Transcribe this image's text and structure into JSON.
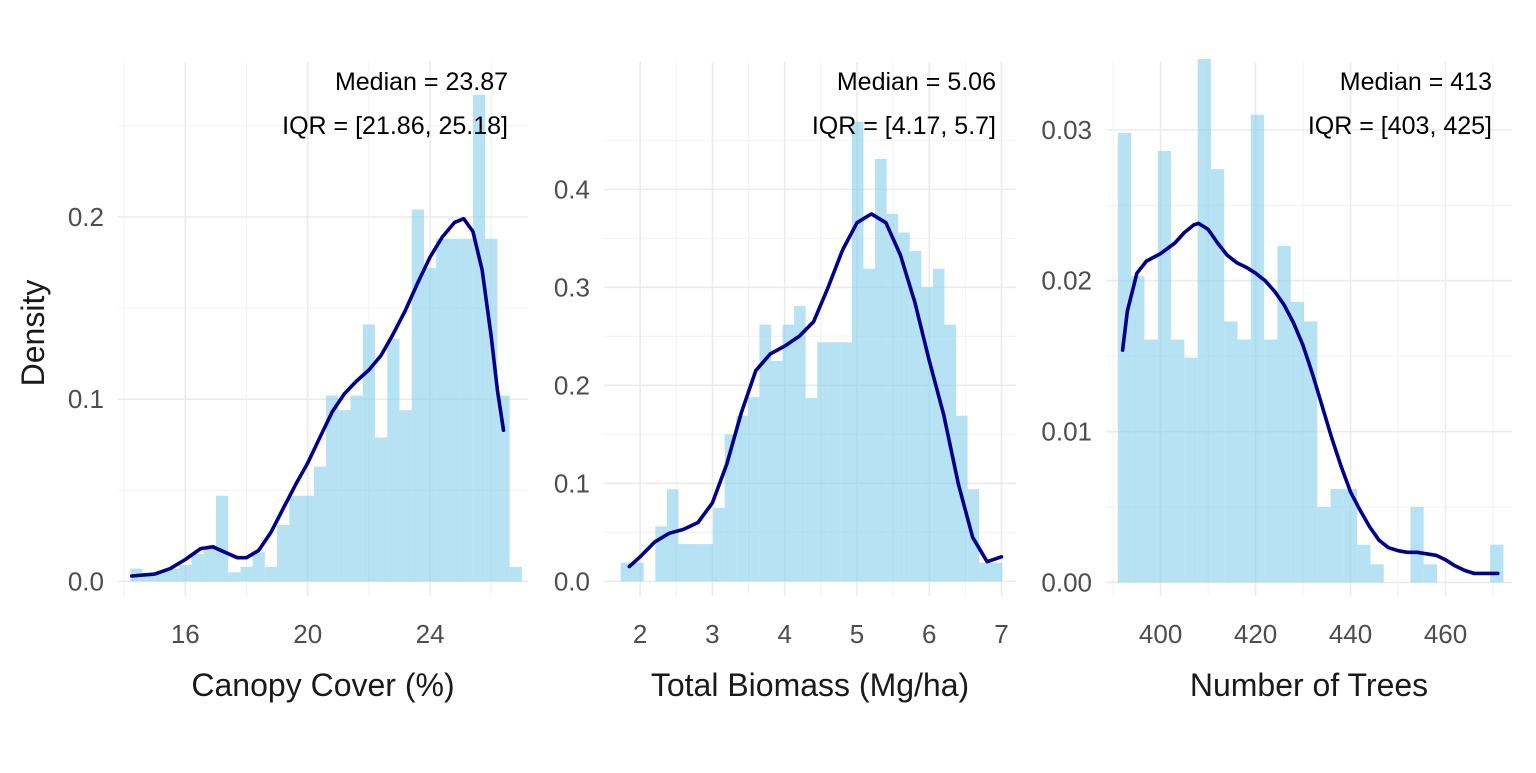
{
  "figure": {
    "ylabel": "Density"
  },
  "chart_data": [
    {
      "type": "bar",
      "xlabel": "Canopy Cover (%)",
      "ylabel": "Density",
      "xlim": [
        13.8,
        27.2
      ],
      "ylim": [
        -0.008,
        0.285
      ],
      "x_ticks": [
        16,
        20,
        24
      ],
      "y_ticks": [
        0.0,
        0.1,
        0.2
      ],
      "y_tick_labels": [
        "0.0",
        "0.1",
        "0.2"
      ],
      "annotations": [
        "Median = 23.87",
        "IQR = [21.86, 25.18]"
      ],
      "bins": [
        {
          "x0": 14.2,
          "x1": 14.6,
          "density": 0.007
        },
        {
          "x0": 14.6,
          "x1": 15.0,
          "density": 0.003
        },
        {
          "x0": 15.0,
          "x1": 15.4,
          "density": 0.005
        },
        {
          "x0": 15.4,
          "x1": 15.8,
          "density": 0.007
        },
        {
          "x0": 15.8,
          "x1": 16.2,
          "density": 0.009
        },
        {
          "x0": 16.2,
          "x1": 16.6,
          "density": 0.015
        },
        {
          "x0": 16.6,
          "x1": 17.0,
          "density": 0.018
        },
        {
          "x0": 17.0,
          "x1": 17.4,
          "density": 0.047
        },
        {
          "x0": 17.4,
          "x1": 17.8,
          "density": 0.005
        },
        {
          "x0": 17.8,
          "x1": 18.2,
          "density": 0.008
        },
        {
          "x0": 18.2,
          "x1": 18.6,
          "density": 0.016
        },
        {
          "x0": 18.6,
          "x1": 19.0,
          "density": 0.008
        },
        {
          "x0": 19.0,
          "x1": 19.4,
          "density": 0.031
        },
        {
          "x0": 19.4,
          "x1": 19.8,
          "density": 0.047
        },
        {
          "x0": 19.8,
          "x1": 20.2,
          "density": 0.047
        },
        {
          "x0": 20.2,
          "x1": 20.6,
          "density": 0.063
        },
        {
          "x0": 20.6,
          "x1": 21.0,
          "density": 0.102
        },
        {
          "x0": 21.0,
          "x1": 21.4,
          "density": 0.094
        },
        {
          "x0": 21.4,
          "x1": 21.8,
          "density": 0.102
        },
        {
          "x0": 21.8,
          "x1": 22.2,
          "density": 0.141
        },
        {
          "x0": 22.2,
          "x1": 22.6,
          "density": 0.079
        },
        {
          "x0": 22.6,
          "x1": 23.0,
          "density": 0.133
        },
        {
          "x0": 23.0,
          "x1": 23.4,
          "density": 0.094
        },
        {
          "x0": 23.4,
          "x1": 23.8,
          "density": 0.204
        },
        {
          "x0": 23.8,
          "x1": 24.2,
          "density": 0.172
        },
        {
          "x0": 24.2,
          "x1": 24.6,
          "density": 0.188
        },
        {
          "x0": 24.6,
          "x1": 25.0,
          "density": 0.188
        },
        {
          "x0": 25.0,
          "x1": 25.4,
          "density": 0.188
        },
        {
          "x0": 25.4,
          "x1": 25.8,
          "density": 0.267
        },
        {
          "x0": 25.8,
          "x1": 26.2,
          "density": 0.188
        },
        {
          "x0": 26.2,
          "x1": 26.6,
          "density": 0.102
        },
        {
          "x0": 26.6,
          "x1": 27.0,
          "density": 0.008
        }
      ],
      "density_curve": {
        "x": [
          14.25,
          15.0,
          15.5,
          16.0,
          16.5,
          16.9,
          17.3,
          17.7,
          18.0,
          18.4,
          18.8,
          19.2,
          19.6,
          20.0,
          20.4,
          20.8,
          21.2,
          21.6,
          22.0,
          22.4,
          22.8,
          23.2,
          23.6,
          24.0,
          24.4,
          24.8,
          25.1,
          25.4,
          25.7,
          26.0,
          26.2,
          26.4
        ],
        "y": [
          0.003,
          0.004,
          0.007,
          0.012,
          0.018,
          0.019,
          0.016,
          0.013,
          0.013,
          0.017,
          0.027,
          0.04,
          0.053,
          0.065,
          0.079,
          0.093,
          0.103,
          0.11,
          0.116,
          0.124,
          0.136,
          0.149,
          0.164,
          0.178,
          0.189,
          0.197,
          0.199,
          0.192,
          0.171,
          0.134,
          0.105,
          0.083
        ]
      }
    },
    {
      "type": "bar",
      "xlabel": "Total Biomass (Mg/ha)",
      "ylabel": "",
      "xlim": [
        1.5,
        7.2
      ],
      "ylim": [
        -0.015,
        0.53
      ],
      "x_ticks": [
        2,
        3,
        4,
        5,
        6,
        7
      ],
      "y_ticks": [
        0.0,
        0.1,
        0.2,
        0.3,
        0.4
      ],
      "y_tick_labels": [
        "0.0",
        "0.1",
        "0.2",
        "0.3",
        "0.4"
      ],
      "annotations": [
        "Median = 5.06",
        "IQR = [4.17, 5.7]"
      ],
      "bins": [
        {
          "x0": 1.73,
          "x1": 1.89,
          "density": 0.019
        },
        {
          "x0": 1.89,
          "x1": 2.05,
          "density": 0.019
        },
        {
          "x0": 2.05,
          "x1": 2.21,
          "density": 0.0
        },
        {
          "x0": 2.21,
          "x1": 2.37,
          "density": 0.056
        },
        {
          "x0": 2.37,
          "x1": 2.53,
          "density": 0.094
        },
        {
          "x0": 2.53,
          "x1": 2.69,
          "density": 0.038
        },
        {
          "x0": 2.69,
          "x1": 2.85,
          "density": 0.038
        },
        {
          "x0": 2.85,
          "x1": 3.01,
          "density": 0.038
        },
        {
          "x0": 3.01,
          "x1": 3.17,
          "density": 0.075
        },
        {
          "x0": 3.17,
          "x1": 3.33,
          "density": 0.15
        },
        {
          "x0": 3.33,
          "x1": 3.49,
          "density": 0.169
        },
        {
          "x0": 3.49,
          "x1": 3.65,
          "density": 0.188
        },
        {
          "x0": 3.65,
          "x1": 3.81,
          "density": 0.262
        },
        {
          "x0": 3.81,
          "x1": 3.97,
          "density": 0.225
        },
        {
          "x0": 3.97,
          "x1": 4.13,
          "density": 0.262
        },
        {
          "x0": 4.13,
          "x1": 4.29,
          "density": 0.281
        },
        {
          "x0": 4.29,
          "x1": 4.45,
          "density": 0.187
        },
        {
          "x0": 4.45,
          "x1": 4.61,
          "density": 0.244
        },
        {
          "x0": 4.61,
          "x1": 4.77,
          "density": 0.244
        },
        {
          "x0": 4.77,
          "x1": 4.93,
          "density": 0.244
        },
        {
          "x0": 4.93,
          "x1": 5.09,
          "density": 0.469
        },
        {
          "x0": 5.09,
          "x1": 5.25,
          "density": 0.319
        },
        {
          "x0": 5.25,
          "x1": 5.41,
          "density": 0.431
        },
        {
          "x0": 5.41,
          "x1": 5.57,
          "density": 0.375
        },
        {
          "x0": 5.57,
          "x1": 5.73,
          "density": 0.356
        },
        {
          "x0": 5.73,
          "x1": 5.89,
          "density": 0.337
        },
        {
          "x0": 5.89,
          "x1": 6.05,
          "density": 0.3
        },
        {
          "x0": 6.05,
          "x1": 6.21,
          "density": 0.319
        },
        {
          "x0": 6.21,
          "x1": 6.37,
          "density": 0.262
        },
        {
          "x0": 6.37,
          "x1": 6.53,
          "density": 0.169
        },
        {
          "x0": 6.53,
          "x1": 6.69,
          "density": 0.094
        },
        {
          "x0": 6.69,
          "x1": 6.85,
          "density": 0.019
        },
        {
          "x0": 6.85,
          "x1": 7.01,
          "density": 0.019
        }
      ],
      "density_curve": {
        "x": [
          1.85,
          2.0,
          2.2,
          2.4,
          2.6,
          2.8,
          3.0,
          3.2,
          3.4,
          3.6,
          3.8,
          4.0,
          4.2,
          4.4,
          4.6,
          4.8,
          5.0,
          5.2,
          5.4,
          5.6,
          5.8,
          6.0,
          6.2,
          6.4,
          6.6,
          6.8,
          7.0
        ],
        "y": [
          0.015,
          0.025,
          0.04,
          0.049,
          0.053,
          0.06,
          0.08,
          0.12,
          0.172,
          0.215,
          0.232,
          0.24,
          0.25,
          0.265,
          0.3,
          0.338,
          0.366,
          0.375,
          0.366,
          0.333,
          0.285,
          0.225,
          0.17,
          0.1,
          0.045,
          0.02,
          0.025
        ]
      }
    },
    {
      "type": "bar",
      "xlabel": "Number of Trees",
      "ylabel": "",
      "xlim": [
        388.5,
        474.0
      ],
      "ylim": [
        -0.0009,
        0.0345
      ],
      "x_ticks": [
        400,
        420,
        440,
        460
      ],
      "y_ticks": [
        0.0,
        0.01,
        0.02,
        0.03
      ],
      "y_tick_labels": [
        "0.00",
        "0.01",
        "0.02",
        "0.03"
      ],
      "annotations": [
        "Median = 413",
        "IQR = [403, 425]"
      ],
      "bins": [
        {
          "x0": 391,
          "x1": 393.8,
          "density": 0.0298
        },
        {
          "x0": 393.8,
          "x1": 396.6,
          "density": 0.0203
        },
        {
          "x0": 396.6,
          "x1": 399.4,
          "density": 0.0161
        },
        {
          "x0": 399.4,
          "x1": 402.2,
          "density": 0.0286
        },
        {
          "x0": 402.2,
          "x1": 405.0,
          "density": 0.0161
        },
        {
          "x0": 405.0,
          "x1": 407.8,
          "density": 0.0149
        },
        {
          "x0": 407.8,
          "x1": 410.6,
          "density": 0.0347
        },
        {
          "x0": 410.6,
          "x1": 413.4,
          "density": 0.0274
        },
        {
          "x0": 413.4,
          "x1": 416.2,
          "density": 0.0173
        },
        {
          "x0": 416.2,
          "x1": 419.0,
          "density": 0.0161
        },
        {
          "x0": 419.0,
          "x1": 421.8,
          "density": 0.031
        },
        {
          "x0": 421.8,
          "x1": 424.6,
          "density": 0.0161
        },
        {
          "x0": 424.6,
          "x1": 427.4,
          "density": 0.0223
        },
        {
          "x0": 427.4,
          "x1": 430.2,
          "density": 0.0186
        },
        {
          "x0": 430.2,
          "x1": 433.0,
          "density": 0.0173
        },
        {
          "x0": 433.0,
          "x1": 435.8,
          "density": 0.005
        },
        {
          "x0": 435.8,
          "x1": 438.6,
          "density": 0.0062
        },
        {
          "x0": 438.6,
          "x1": 441.4,
          "density": 0.0062
        },
        {
          "x0": 441.4,
          "x1": 444.2,
          "density": 0.0025
        },
        {
          "x0": 444.2,
          "x1": 447.0,
          "density": 0.0012
        },
        {
          "x0": 447.0,
          "x1": 449.8,
          "density": 0.0
        },
        {
          "x0": 449.8,
          "x1": 452.6,
          "density": 0.0
        },
        {
          "x0": 452.6,
          "x1": 455.4,
          "density": 0.005
        },
        {
          "x0": 455.4,
          "x1": 458.2,
          "density": 0.0012
        },
        {
          "x0": 458.2,
          "x1": 461.0,
          "density": 0.0
        },
        {
          "x0": 461.0,
          "x1": 463.8,
          "density": 0.0
        },
        {
          "x0": 463.8,
          "x1": 466.6,
          "density": 0.0
        },
        {
          "x0": 466.6,
          "x1": 469.4,
          "density": 0.0
        },
        {
          "x0": 469.4,
          "x1": 472.2,
          "density": 0.0025
        }
      ],
      "density_curve": {
        "x": [
          392,
          393,
          395,
          397,
          400,
          403,
          405,
          407,
          408,
          410,
          412,
          414,
          416,
          418,
          420,
          422,
          424,
          426,
          428,
          430,
          432,
          434,
          436,
          438,
          440,
          442,
          444,
          446,
          448,
          450,
          452,
          454,
          456,
          458,
          460,
          462,
          464,
          466,
          468,
          470,
          471
        ],
        "y": [
          0.0154,
          0.018,
          0.0205,
          0.0213,
          0.0218,
          0.0225,
          0.0232,
          0.0237,
          0.0238,
          0.0234,
          0.0225,
          0.0217,
          0.0212,
          0.0209,
          0.0205,
          0.02,
          0.0193,
          0.0184,
          0.0172,
          0.0157,
          0.0138,
          0.0117,
          0.0096,
          0.0077,
          0.006,
          0.0048,
          0.0037,
          0.0028,
          0.0023,
          0.0021,
          0.002,
          0.002,
          0.0019,
          0.0018,
          0.0015,
          0.0011,
          0.0008,
          0.0006,
          0.0006,
          0.0006,
          0.0006
        ]
      }
    }
  ]
}
